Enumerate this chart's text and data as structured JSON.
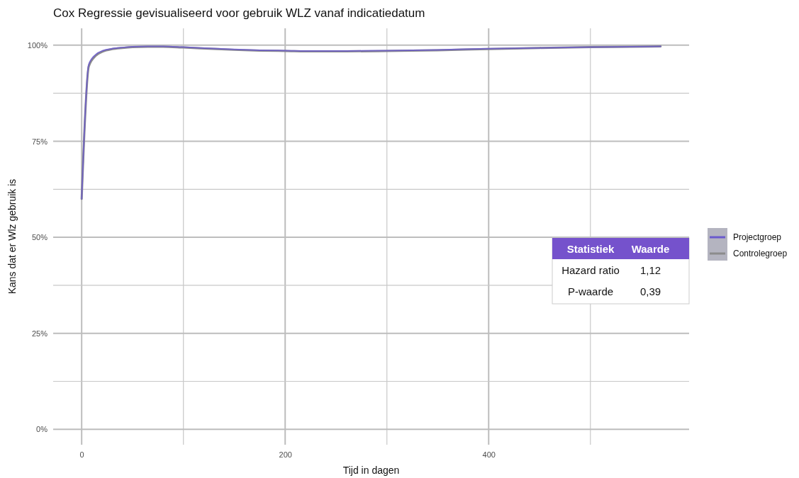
{
  "chart_data": {
    "type": "line",
    "title": "Cox Regressie gevisualiseerd voor gebruik WLZ vanaf indicatiedatum",
    "xlabel": "Tijd in dagen",
    "ylabel": "Kans dat er Wlz gebruik is",
    "x": [
      0,
      7,
      14,
      21,
      30,
      40,
      50,
      65,
      80,
      100,
      125,
      150,
      175,
      200,
      230,
      260,
      300,
      350,
      400,
      450,
      500,
      540,
      569
    ],
    "series": [
      {
        "name": "Projectgroep",
        "color": "#6a5acd",
        "values": [
          60,
          95,
          97.6,
          98.6,
          99.1,
          99.4,
          99.6,
          99.7,
          99.7,
          99.5,
          99.2,
          98.9,
          98.7,
          98.6,
          98.5,
          98.5,
          98.6,
          98.8,
          99.1,
          99.3,
          99.5,
          99.6,
          99.7
        ]
      },
      {
        "name": "Controlegroep",
        "color": "#8c8c8c",
        "values": [
          60,
          94.5,
          97.3,
          98.4,
          99.0,
          99.3,
          99.5,
          99.6,
          99.6,
          99.4,
          99.1,
          98.8,
          98.6,
          98.5,
          98.4,
          98.4,
          98.5,
          98.7,
          99.0,
          99.3,
          99.5,
          99.6,
          99.7
        ]
      }
    ],
    "xlim": [
      -28,
      597
    ],
    "xticks": [
      0,
      200,
      400
    ],
    "ylim": [
      -4,
      104.4
    ],
    "yticks": [
      {
        "value": 0,
        "label": "0%"
      },
      {
        "value": 25,
        "label": "25%"
      },
      {
        "value": 50,
        "label": "50%"
      },
      {
        "value": 75,
        "label": "75%"
      },
      {
        "value": 100,
        "label": "100%"
      }
    ],
    "grid": true,
    "legend": "right",
    "annotations": [
      "Statistiek",
      "Waarde",
      "Hazard ratio",
      "1,12",
      "P-waarde",
      "0,39"
    ]
  }
}
